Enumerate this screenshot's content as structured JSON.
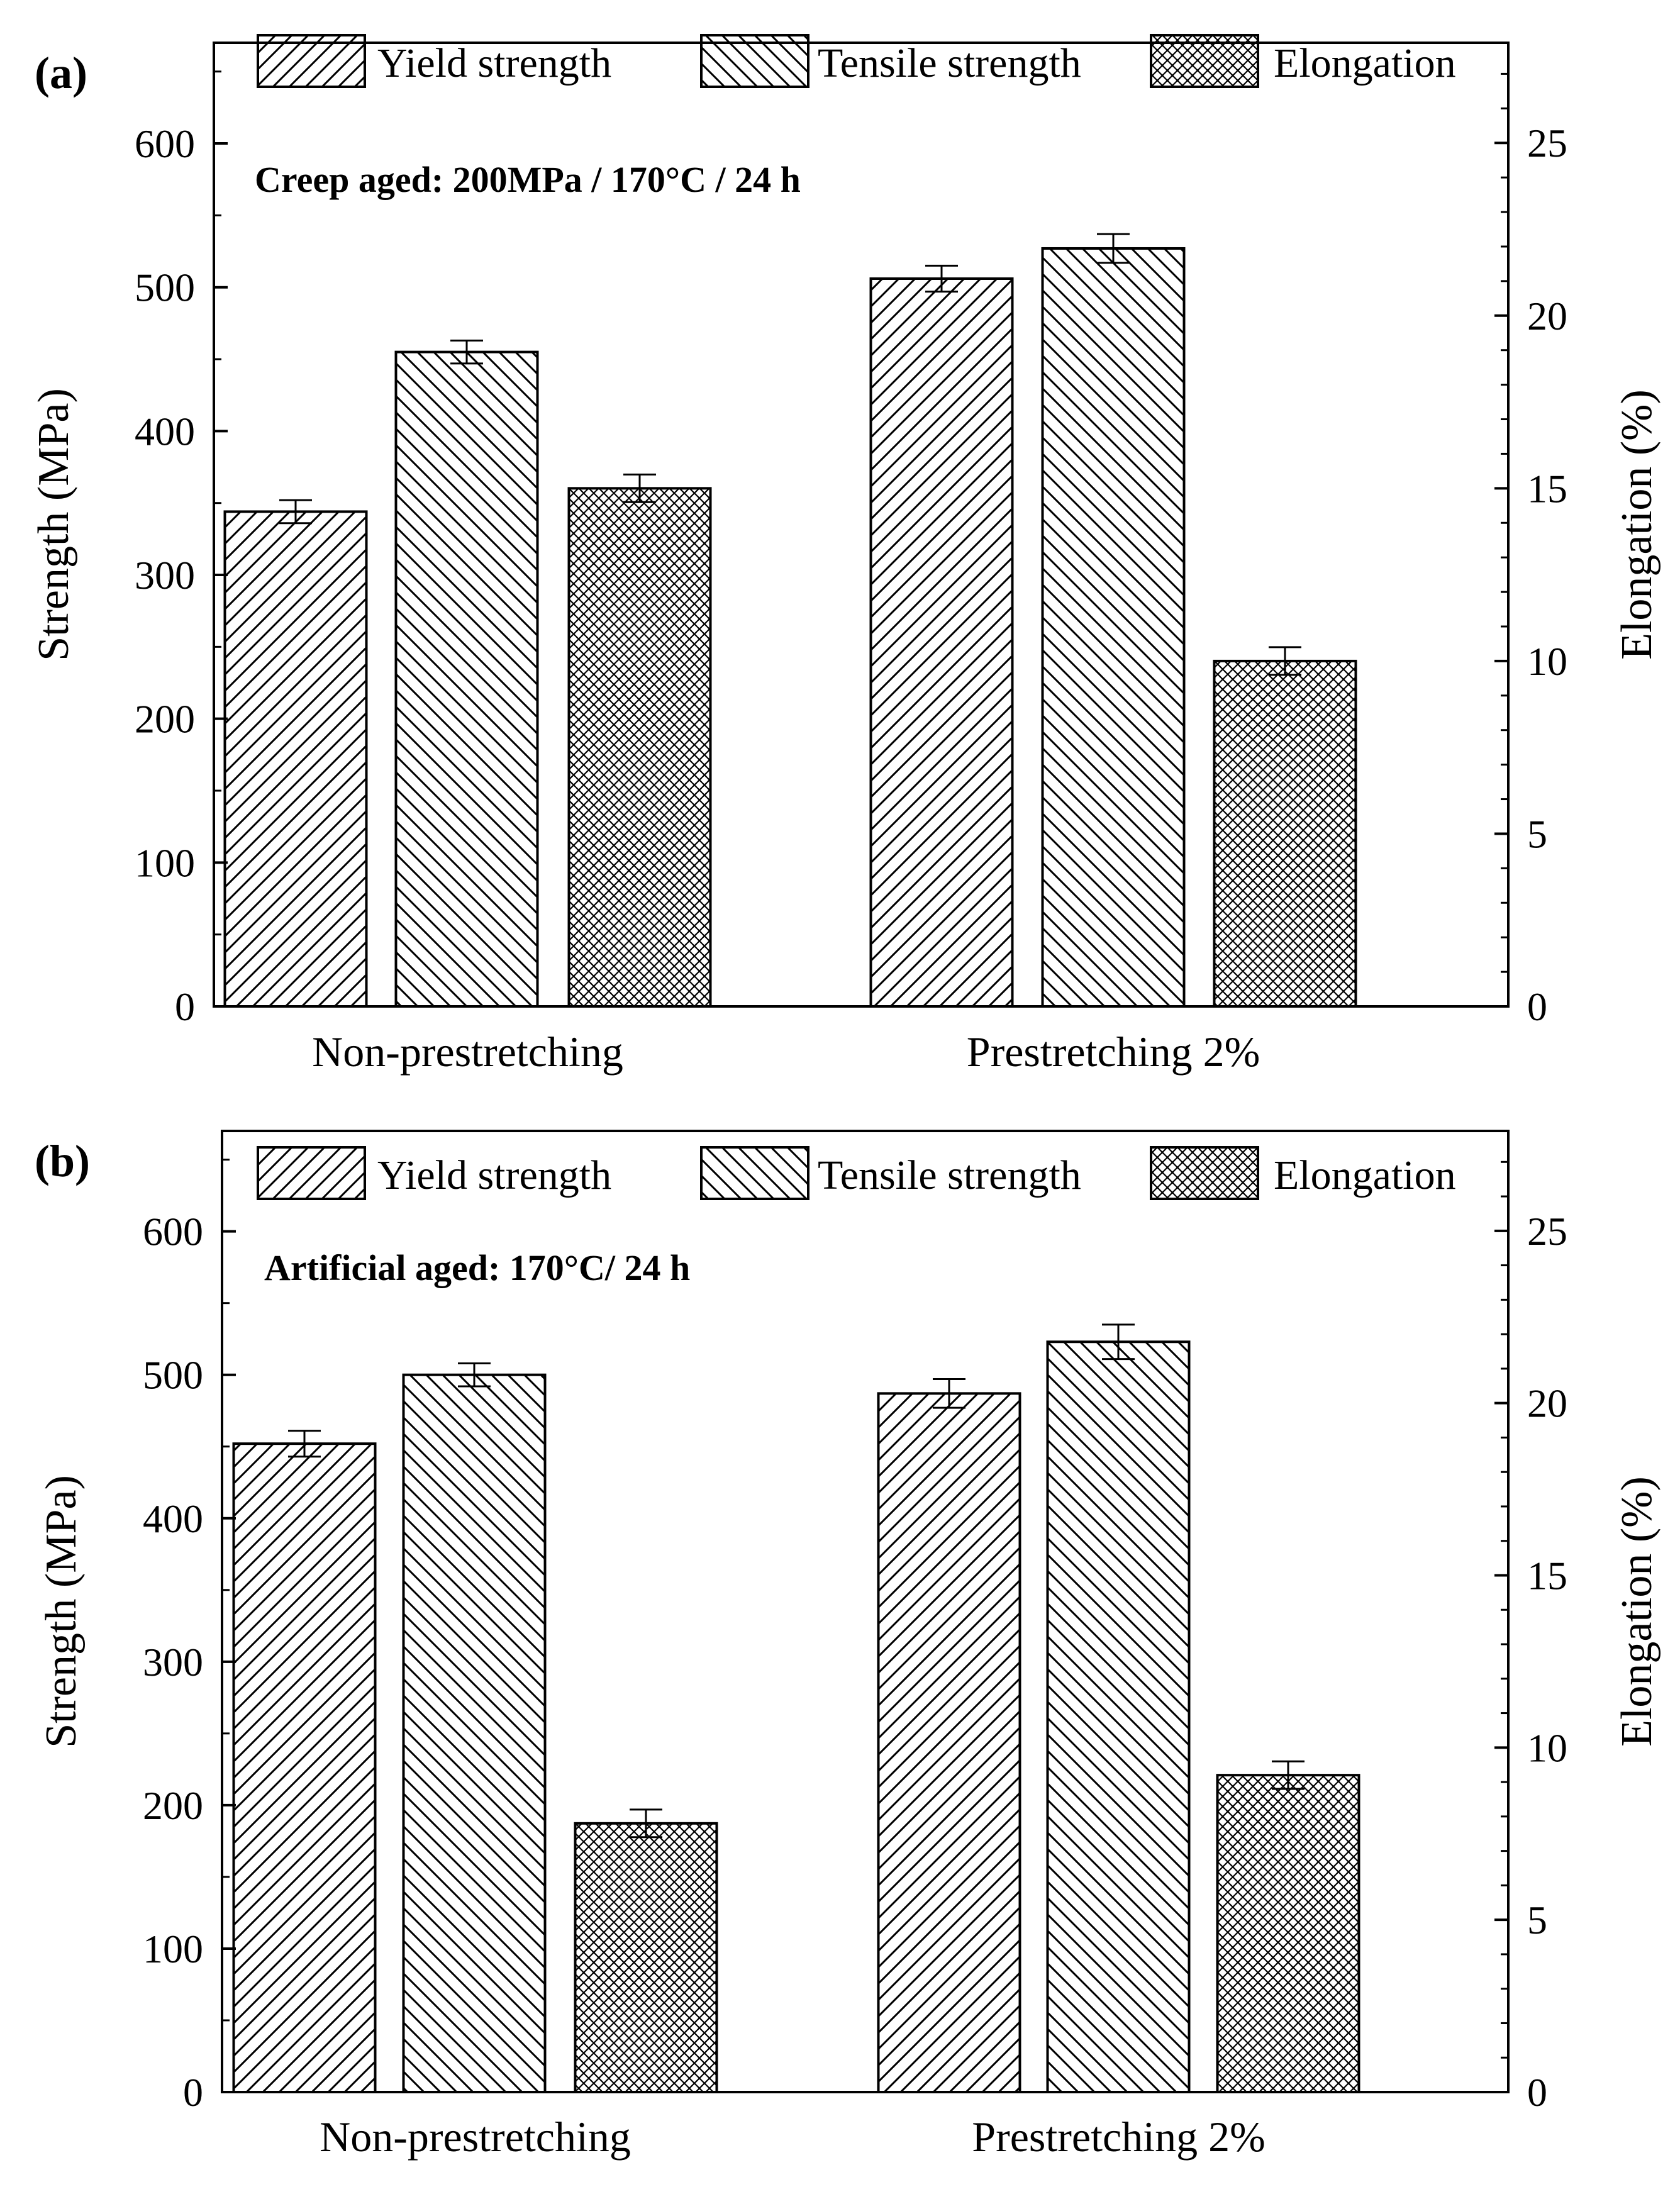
{
  "chart_data": [
    {
      "type": "bar",
      "panel_label": "(a)",
      "annotation": "Creep aged: 200MPa / 170°C / 24 h",
      "categories": [
        "Non-prestretching",
        "Prestretching 2%"
      ],
      "legend": [
        "Yield strength",
        "Tensile strength",
        "Elongation"
      ],
      "ylabel": "Strength (MPa)",
      "y2label": "Elongation (%)",
      "ylim": [
        0,
        670
      ],
      "y2lim": [
        0,
        27.9
      ],
      "yticks": [
        0,
        100,
        200,
        300,
        400,
        500,
        600
      ],
      "y2ticks": [
        0,
        5,
        10,
        15,
        20,
        25
      ],
      "series": [
        {
          "name": "Yield strength",
          "axis": "left",
          "values": [
            344,
            506
          ],
          "errors": [
            8,
            9
          ]
        },
        {
          "name": "Tensile strength",
          "axis": "left",
          "values": [
            455,
            527
          ],
          "errors": [
            8,
            10
          ]
        },
        {
          "name": "Elongation",
          "axis": "right",
          "values": [
            15.0,
            10.0
          ],
          "errors": [
            0.4,
            0.4
          ]
        }
      ]
    },
    {
      "type": "bar",
      "panel_label": "(b)",
      "annotation": "Artificial aged: 170°C/ 24 h",
      "categories": [
        "Non-prestretching",
        "Prestretching 2%"
      ],
      "legend": [
        "Yield strength",
        "Tensile strength",
        "Elongation"
      ],
      "ylabel": "Strength (MPa)",
      "y2label": "Elongation (%)",
      "ylim": [
        0,
        670
      ],
      "y2lim": [
        0,
        27.9
      ],
      "yticks": [
        0,
        100,
        200,
        300,
        400,
        500,
        600
      ],
      "y2ticks": [
        0,
        5,
        10,
        15,
        20,
        25
      ],
      "series": [
        {
          "name": "Yield strength",
          "axis": "left",
          "values": [
            452,
            487
          ],
          "errors": [
            9,
            10
          ]
        },
        {
          "name": "Tensile strength",
          "axis": "left",
          "values": [
            500,
            523
          ],
          "errors": [
            8,
            12
          ]
        },
        {
          "name": "Elongation",
          "axis": "right",
          "values": [
            7.8,
            9.2
          ],
          "errors": [
            0.4,
            0.4
          ]
        }
      ]
    }
  ]
}
